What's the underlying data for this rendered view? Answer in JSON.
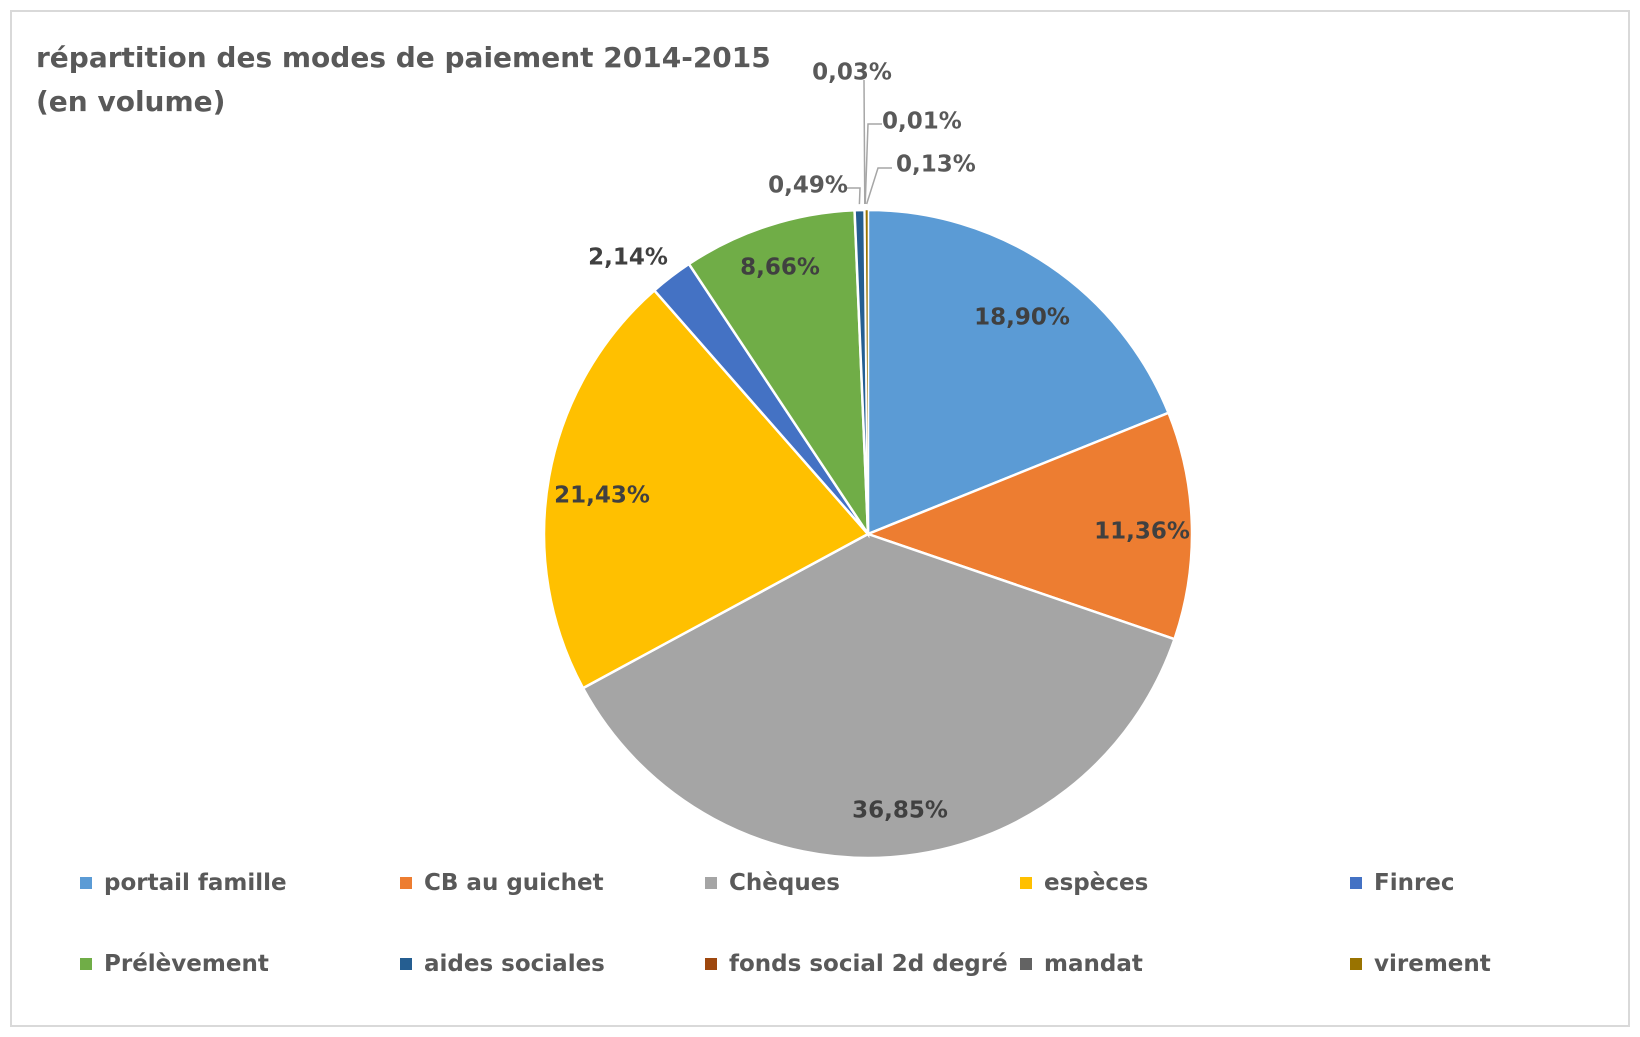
{
  "chart_data": {
    "type": "pie",
    "title_lines": [
      "répartition des modes de paiement 2014-2015",
      "(en volume)"
    ],
    "legend_position": "bottom",
    "slices": [
      {
        "label": "portail famille",
        "value": 18.9,
        "display": "18,90%",
        "color": "#5b9bd5"
      },
      {
        "label": "CB au guichet",
        "value": 11.36,
        "display": "11,36%",
        "color": "#ed7d31"
      },
      {
        "label": "Chèques",
        "value": 36.85,
        "display": "36,85%",
        "color": "#a5a5a5"
      },
      {
        "label": "espèces",
        "value": 21.43,
        "display": "21,43%",
        "color": "#ffc000"
      },
      {
        "label": "Finrec",
        "value": 2.14,
        "display": "2,14%",
        "color": "#4472c4"
      },
      {
        "label": "Prélèvement",
        "value": 8.66,
        "display": "8,66%",
        "color": "#70ad47"
      },
      {
        "label": "aides sociales",
        "value": 0.49,
        "display": "0,49%",
        "color": "#255e91"
      },
      {
        "label": "fonds social 2d degré",
        "value": 0.03,
        "display": "0,03%",
        "color": "#9e480e"
      },
      {
        "label": "mandat",
        "value": 0.01,
        "display": "0,01%",
        "color": "#636363"
      },
      {
        "label": "virement",
        "value": 0.13,
        "display": "0,13%",
        "color": "#997300"
      }
    ]
  }
}
